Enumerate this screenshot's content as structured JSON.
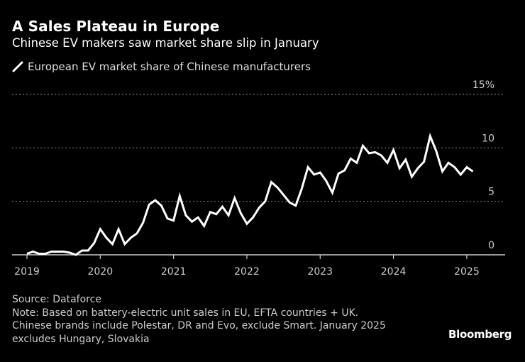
{
  "header": {
    "title": "A Sales Plateau in Europe",
    "subtitle": "Chinese EV makers saw market share slip in January"
  },
  "legend": {
    "items": [
      {
        "label": "European EV market share of Chinese manufacturers",
        "icon": "line-swatch-icon",
        "color": "#ffffff"
      }
    ]
  },
  "footer": {
    "source": "Source: Dataforce",
    "note_lines": [
      "Note: Based on battery-electric unit sales in EU, EFTA countries + UK.",
      "Chinese brands include Polestar, DR and Evo, exclude Smart. January 2025",
      "excludes Hungary, Slovakia"
    ],
    "brand": "Bloomberg"
  },
  "colors": {
    "background": "#000000",
    "line": "#ffffff",
    "gridline": "#777777",
    "axis": "#cccccc"
  },
  "chart_data": {
    "type": "line",
    "title": "A Sales Plateau in Europe",
    "subtitle": "Chinese EV makers saw market share slip in January",
    "xlabel": "",
    "ylabel": "",
    "x_start": "2019-01",
    "x_frequency": "monthly",
    "x_ticks": [
      "2019",
      "2020",
      "2021",
      "2022",
      "2023",
      "2024",
      "2025"
    ],
    "y_ticks": [
      {
        "value": 0,
        "label": "0"
      },
      {
        "value": 5,
        "label": "5"
      },
      {
        "value": 10,
        "label": "10"
      },
      {
        "value": 15,
        "label": "15%"
      }
    ],
    "ylim": [
      0,
      15
    ],
    "grid": true,
    "legend_position": "top-left",
    "series": [
      {
        "name": "European EV market share of Chinese manufacturers",
        "unit": "%",
        "values": [
          0.1,
          0.3,
          0.1,
          0.1,
          0.3,
          0.3,
          0.3,
          0.2,
          0.0,
          0.4,
          0.4,
          1.1,
          2.4,
          1.6,
          1.0,
          2.4,
          1.0,
          1.6,
          2.0,
          3.0,
          4.7,
          5.1,
          4.6,
          3.4,
          3.2,
          5.5,
          3.7,
          3.1,
          3.5,
          2.7,
          4.0,
          3.8,
          4.5,
          3.7,
          5.3,
          3.9,
          2.9,
          3.5,
          4.4,
          5.0,
          6.8,
          6.3,
          5.6,
          4.9,
          4.6,
          6.2,
          8.2,
          7.5,
          7.7,
          6.9,
          5.8,
          7.6,
          7.9,
          9.0,
          8.6,
          10.2,
          9.5,
          9.6,
          9.3,
          8.6,
          9.8,
          8.1,
          8.9,
          7.3,
          8.1,
          8.7,
          11.1,
          9.7,
          7.8,
          8.6,
          8.2,
          7.5,
          8.2,
          7.8
        ]
      }
    ]
  }
}
